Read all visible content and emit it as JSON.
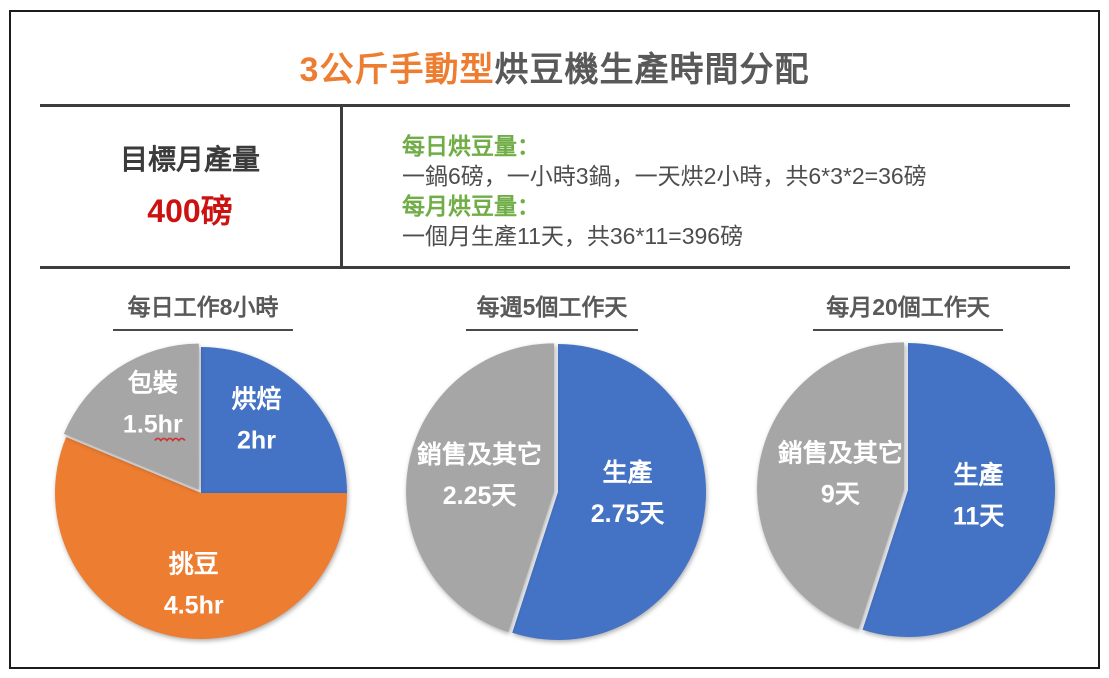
{
  "page_title": {
    "highlight": "3公斤手動型",
    "rest": "烘豆機生產時間分配"
  },
  "summary": {
    "target_label": "目標月產量",
    "target_value": "400磅",
    "daily_label": "每日烘豆量：",
    "daily_text": "一鍋6磅，一小時3鍋，一天烘2小時，共6*3*2=36磅",
    "monthly_label": "每月烘豆量：",
    "monthly_text": "一個月生產11天，共36*11=396磅"
  },
  "colors": {
    "accent_orange": "#ED7D31",
    "accent_blue": "#4472C4",
    "accent_gray": "#A6A6A6",
    "green_label": "#70AD47",
    "red_value": "#CC1111",
    "dark_text": "#595959",
    "squiggle_red": "#CC3333"
  },
  "chart_data": [
    {
      "type": "pie",
      "title": "每日工作8小時",
      "unit": "hr",
      "total": 8,
      "legend": "none",
      "labels_inside": true,
      "slices": [
        {
          "label": "烘焙",
          "value": 2,
          "value_text": "2hr",
          "color": "#4472C4",
          "explode": false,
          "label_at": [
            0.38,
            -0.51
          ]
        },
        {
          "label": "挑豆",
          "value": 4.5,
          "value_text": "4.5hr",
          "color": "#ED7D31",
          "explode": false,
          "label_at": [
            -0.05,
            0.62
          ]
        },
        {
          "label": "包裝",
          "value": 1.5,
          "value_text": "1.5hr",
          "color": "#A6A6A6",
          "explode": true,
          "label_at": [
            -0.33,
            -0.62
          ],
          "squiggle_under_value": true
        }
      ]
    },
    {
      "type": "pie",
      "title": "每週5個工作天",
      "unit": "天",
      "total": 5,
      "legend": "none",
      "labels_inside": true,
      "slices": [
        {
          "label": "生產",
          "value": 2.75,
          "value_text": "2.75天",
          "color": "#4472C4",
          "explode": false,
          "label_at": [
            0.47,
            0.0
          ]
        },
        {
          "label": "銷售及其它",
          "value": 2.25,
          "value_text": "2.25天",
          "color": "#A6A6A6",
          "explode": true,
          "label_at": [
            -0.53,
            -0.12
          ]
        }
      ]
    },
    {
      "type": "pie",
      "title": "每月20個工作天",
      "unit": "天",
      "total": 20,
      "legend": "none",
      "labels_inside": true,
      "slices": [
        {
          "label": "生產",
          "value": 11,
          "value_text": "11天",
          "color": "#4472C4",
          "explode": false,
          "label_at": [
            0.48,
            0.03
          ]
        },
        {
          "label": "銷售及其它",
          "value": 9,
          "value_text": "9天",
          "color": "#A6A6A6",
          "explode": true,
          "label_at": [
            -0.46,
            -0.12
          ]
        }
      ]
    }
  ]
}
